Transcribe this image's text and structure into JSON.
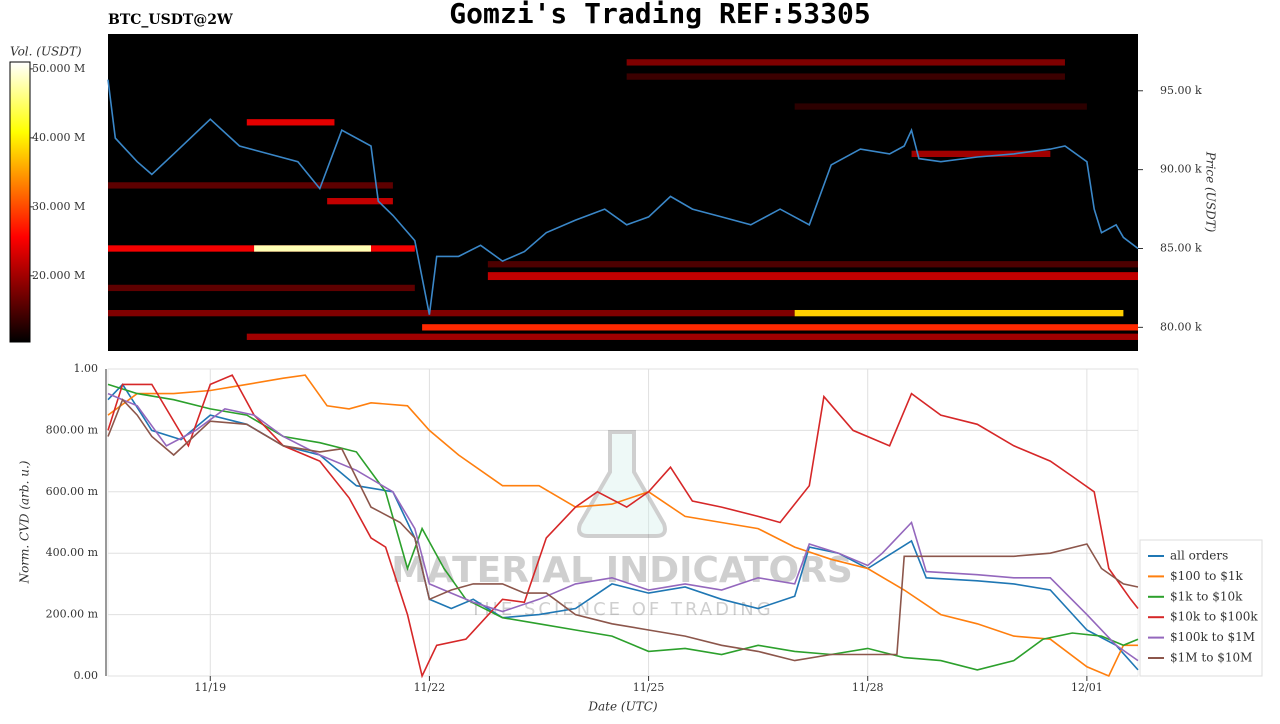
{
  "chart_data": [
    {
      "type": "heatmap",
      "title": "Gomzi's Trading REF:53305",
      "subtitle": "BTC_USDT@2W",
      "ylabel": "Price (USDT)",
      "xlim": [
        17.6,
        31.7
      ],
      "ylim": [
        78500,
        98600
      ],
      "yticks": [
        {
          "value": 80000,
          "label": "80.00 k"
        },
        {
          "value": 85000,
          "label": "85.00 k"
        },
        {
          "value": 90000,
          "label": "90.00 k"
        },
        {
          "value": 95000,
          "label": "95.00 k"
        }
      ],
      "colorbar_label": "Vol. (USDT)",
      "colormap": "hot",
      "clim": [
        10400000,
        51000000
      ],
      "cticks": [
        {
          "value": 20000000,
          "label": "20.000 M"
        },
        {
          "value": 30000000,
          "label": "30.000 M"
        },
        {
          "value": 40000000,
          "label": "40.000 M"
        },
        {
          "value": 50000000,
          "label": "50.000 M"
        }
      ],
      "cells": [
        {
          "x0": 21.9,
          "x1": 31.7,
          "y0": 79800,
          "y1": 80200,
          "value": 28000000
        },
        {
          "x0": 17.6,
          "x1": 27.0,
          "y0": 80700,
          "y1": 81100,
          "value": 18000000
        },
        {
          "x0": 27.0,
          "x1": 31.5,
          "y0": 80700,
          "y1": 81100,
          "value": 38000000
        },
        {
          "x0": 19.5,
          "x1": 31.7,
          "y0": 79200,
          "y1": 79600,
          "value": 20000000
        },
        {
          "x0": 17.6,
          "x1": 21.8,
          "y0": 84800,
          "y1": 85200,
          "value": 25000000
        },
        {
          "x0": 19.6,
          "x1": 21.2,
          "y0": 84800,
          "y1": 85200,
          "value": 48000000
        },
        {
          "x0": 22.8,
          "x1": 31.7,
          "y0": 83000,
          "y1": 83500,
          "value": 22000000
        },
        {
          "x0": 22.8,
          "x1": 31.7,
          "y0": 83800,
          "y1": 84200,
          "value": 15000000
        },
        {
          "x0": 17.6,
          "x1": 21.8,
          "y0": 82300,
          "y1": 82700,
          "value": 16000000
        },
        {
          "x0": 17.6,
          "x1": 21.5,
          "y0": 88800,
          "y1": 89200,
          "value": 16000000
        },
        {
          "x0": 24.7,
          "x1": 30.7,
          "y0": 96600,
          "y1": 97000,
          "value": 18000000
        },
        {
          "x0": 24.7,
          "x1": 30.7,
          "y0": 95700,
          "y1": 96100,
          "value": 14000000
        },
        {
          "x0": 28.6,
          "x1": 30.5,
          "y0": 90800,
          "y1": 91200,
          "value": 20000000
        },
        {
          "x0": 19.5,
          "x1": 20.7,
          "y0": 92800,
          "y1": 93200,
          "value": 24000000
        },
        {
          "x0": 20.6,
          "x1": 21.5,
          "y0": 87800,
          "y1": 88200,
          "value": 22000000
        },
        {
          "x0": 27.0,
          "x1": 31.0,
          "y0": 93800,
          "y1": 94200,
          "value": 13000000
        }
      ],
      "series": [
        {
          "name": "price",
          "color": "#3a87c8",
          "x": [
            17.6,
            17.7,
            18.0,
            18.2,
            18.5,
            19.0,
            19.4,
            19.8,
            20.2,
            20.5,
            20.8,
            21.2,
            21.3,
            21.5,
            21.8,
            22.0,
            22.1,
            22.4,
            22.7,
            23.0,
            23.3,
            23.6,
            24.0,
            24.4,
            24.7,
            25.0,
            25.3,
            25.6,
            26.0,
            26.4,
            26.8,
            27.2,
            27.5,
            27.9,
            28.3,
            28.5,
            28.6,
            28.7,
            29.0,
            29.5,
            30.0,
            30.5,
            30.7,
            31.0,
            31.1,
            31.2,
            31.4,
            31.5,
            31.7
          ],
          "values": [
            95700,
            92000,
            90500,
            89700,
            91000,
            93200,
            91500,
            91000,
            90500,
            88800,
            92500,
            91500,
            88000,
            87100,
            85500,
            80800,
            84500,
            84500,
            85200,
            84200,
            84800,
            86000,
            86800,
            87500,
            86500,
            87000,
            88300,
            87500,
            87000,
            86500,
            87500,
            86500,
            90300,
            91300,
            91000,
            91500,
            92500,
            90700,
            90500,
            90800,
            91000,
            91300,
            91500,
            90500,
            87500,
            86000,
            86500,
            85700,
            85000
          ]
        }
      ]
    },
    {
      "type": "line",
      "xlabel": "Date (UTC)",
      "ylabel": "Norm. CVD (arb. u.)",
      "xlim": [
        17.6,
        31.7
      ],
      "ylim": [
        0,
        1
      ],
      "xticks": [
        {
          "value": 19,
          "label": "11/19"
        },
        {
          "value": 22,
          "label": "11/22"
        },
        {
          "value": 25,
          "label": "11/25"
        },
        {
          "value": 28,
          "label": "11/28"
        },
        {
          "value": 31,
          "label": "12/01"
        }
      ],
      "yticks": [
        {
          "value": 0,
          "label": "0.00"
        },
        {
          "value": 0.2,
          "label": "200.00 m"
        },
        {
          "value": 0.4,
          "label": "400.00 m"
        },
        {
          "value": 0.6,
          "label": "600.00 m"
        },
        {
          "value": 0.8,
          "label": "800.00 m"
        },
        {
          "value": 1,
          "label": "1.00"
        }
      ],
      "grid": true,
      "legend": "bottom-right",
      "series": [
        {
          "name": "all orders",
          "color": "#1f77b4",
          "x": [
            17.6,
            17.8,
            18.2,
            18.6,
            19.0,
            19.5,
            20.0,
            20.5,
            21.0,
            21.5,
            21.8,
            22.0,
            22.3,
            22.6,
            23.0,
            23.5,
            24.0,
            24.5,
            25.0,
            25.5,
            26.0,
            26.5,
            27.0,
            27.2,
            27.6,
            28.0,
            28.2,
            28.6,
            28.8,
            29.5,
            30.0,
            30.5,
            31.0,
            31.4,
            31.7
          ],
          "values": [
            0.9,
            0.95,
            0.8,
            0.77,
            0.85,
            0.82,
            0.75,
            0.72,
            0.62,
            0.6,
            0.45,
            0.25,
            0.22,
            0.25,
            0.19,
            0.2,
            0.22,
            0.3,
            0.27,
            0.29,
            0.25,
            0.22,
            0.26,
            0.42,
            0.4,
            0.35,
            0.38,
            0.44,
            0.32,
            0.31,
            0.3,
            0.28,
            0.15,
            0.1,
            0.02
          ]
        },
        {
          "name": "$100 to $1k",
          "color": "#ff7f0e",
          "x": [
            17.6,
            18.0,
            18.5,
            19.0,
            19.5,
            20.0,
            20.3,
            20.6,
            20.9,
            21.2,
            21.7,
            22.0,
            22.4,
            23.0,
            23.5,
            24.0,
            24.5,
            25.0,
            25.5,
            26.0,
            26.5,
            27.0,
            27.5,
            28.0,
            28.5,
            29.0,
            29.5,
            30.0,
            30.5,
            31.0,
            31.3,
            31.5,
            31.7
          ],
          "values": [
            0.85,
            0.92,
            0.92,
            0.93,
            0.95,
            0.97,
            0.98,
            0.88,
            0.87,
            0.89,
            0.88,
            0.8,
            0.72,
            0.62,
            0.62,
            0.55,
            0.56,
            0.6,
            0.52,
            0.5,
            0.48,
            0.42,
            0.38,
            0.35,
            0.28,
            0.2,
            0.17,
            0.13,
            0.12,
            0.03,
            0.0,
            0.1,
            0.1
          ]
        },
        {
          "name": "$1k to $10k",
          "color": "#2ca02c",
          "x": [
            17.6,
            18.0,
            18.5,
            19.0,
            19.5,
            20.0,
            20.5,
            21.0,
            21.4,
            21.7,
            21.9,
            22.2,
            22.5,
            23.0,
            23.5,
            24.0,
            24.5,
            25.0,
            25.5,
            26.0,
            26.5,
            27.0,
            27.5,
            28.0,
            28.5,
            29.0,
            29.5,
            30.0,
            30.4,
            30.8,
            31.2,
            31.5,
            31.7
          ],
          "values": [
            0.95,
            0.92,
            0.9,
            0.87,
            0.85,
            0.78,
            0.76,
            0.73,
            0.6,
            0.35,
            0.48,
            0.35,
            0.25,
            0.19,
            0.17,
            0.15,
            0.13,
            0.08,
            0.09,
            0.07,
            0.1,
            0.08,
            0.07,
            0.09,
            0.06,
            0.05,
            0.02,
            0.05,
            0.12,
            0.14,
            0.13,
            0.1,
            0.12
          ]
        },
        {
          "name": "$10k to $100k",
          "color": "#d62728",
          "x": [
            17.6,
            17.8,
            18.2,
            18.7,
            19.0,
            19.3,
            19.6,
            20.0,
            20.5,
            20.9,
            21.2,
            21.4,
            21.7,
            21.9,
            22.1,
            22.5,
            23.0,
            23.3,
            23.6,
            24.0,
            24.3,
            24.7,
            25.0,
            25.3,
            25.6,
            26.0,
            26.5,
            26.8,
            27.2,
            27.4,
            27.8,
            28.3,
            28.6,
            29.0,
            29.5,
            30.0,
            30.5,
            30.8,
            31.1,
            31.3,
            31.6,
            31.7
          ],
          "values": [
            0.8,
            0.95,
            0.95,
            0.75,
            0.95,
            0.98,
            0.85,
            0.75,
            0.7,
            0.58,
            0.45,
            0.42,
            0.2,
            0.0,
            0.1,
            0.12,
            0.25,
            0.24,
            0.45,
            0.55,
            0.6,
            0.55,
            0.6,
            0.68,
            0.57,
            0.55,
            0.52,
            0.5,
            0.62,
            0.91,
            0.8,
            0.75,
            0.92,
            0.85,
            0.82,
            0.75,
            0.7,
            0.65,
            0.6,
            0.35,
            0.25,
            0.22
          ]
        },
        {
          "name": "$100k to $1M",
          "color": "#9467bd",
          "x": [
            17.6,
            18.0,
            18.4,
            18.8,
            19.2,
            19.6,
            20.0,
            20.5,
            21.0,
            21.5,
            21.8,
            22.0,
            22.3,
            22.6,
            23.0,
            23.5,
            24.0,
            24.5,
            25.0,
            25.5,
            26.0,
            26.5,
            27.0,
            27.2,
            27.6,
            28.0,
            28.2,
            28.6,
            28.8,
            29.5,
            30.0,
            30.5,
            31.0,
            31.4,
            31.7
          ],
          "values": [
            0.92,
            0.88,
            0.75,
            0.8,
            0.87,
            0.85,
            0.78,
            0.72,
            0.67,
            0.6,
            0.48,
            0.3,
            0.27,
            0.24,
            0.21,
            0.25,
            0.3,
            0.32,
            0.28,
            0.3,
            0.28,
            0.32,
            0.3,
            0.43,
            0.4,
            0.36,
            0.4,
            0.5,
            0.34,
            0.33,
            0.32,
            0.32,
            0.2,
            0.1,
            0.05
          ]
        },
        {
          "name": "$1M to $10M",
          "color": "#8c564b",
          "x": [
            17.6,
            17.8,
            18.0,
            18.2,
            18.5,
            19.0,
            19.5,
            20.0,
            20.5,
            20.8,
            21.2,
            21.6,
            21.8,
            22.0,
            22.3,
            22.6,
            23.0,
            23.3,
            23.6,
            24.0,
            24.5,
            25.0,
            25.5,
            26.0,
            26.5,
            27.0,
            27.5,
            28.0,
            28.4,
            28.5,
            29.0,
            30.0,
            30.5,
            31.0,
            31.2,
            31.5,
            31.7
          ],
          "values": [
            0.78,
            0.9,
            0.85,
            0.78,
            0.72,
            0.83,
            0.82,
            0.75,
            0.73,
            0.74,
            0.55,
            0.5,
            0.45,
            0.25,
            0.28,
            0.3,
            0.3,
            0.27,
            0.27,
            0.2,
            0.17,
            0.15,
            0.13,
            0.1,
            0.08,
            0.05,
            0.07,
            0.07,
            0.07,
            0.39,
            0.39,
            0.39,
            0.4,
            0.43,
            0.35,
            0.3,
            0.29
          ]
        }
      ]
    }
  ],
  "watermark": {
    "brand": "MATERIAL INDICATORS",
    "tagline": "THE SCIENCE OF TRADING"
  }
}
